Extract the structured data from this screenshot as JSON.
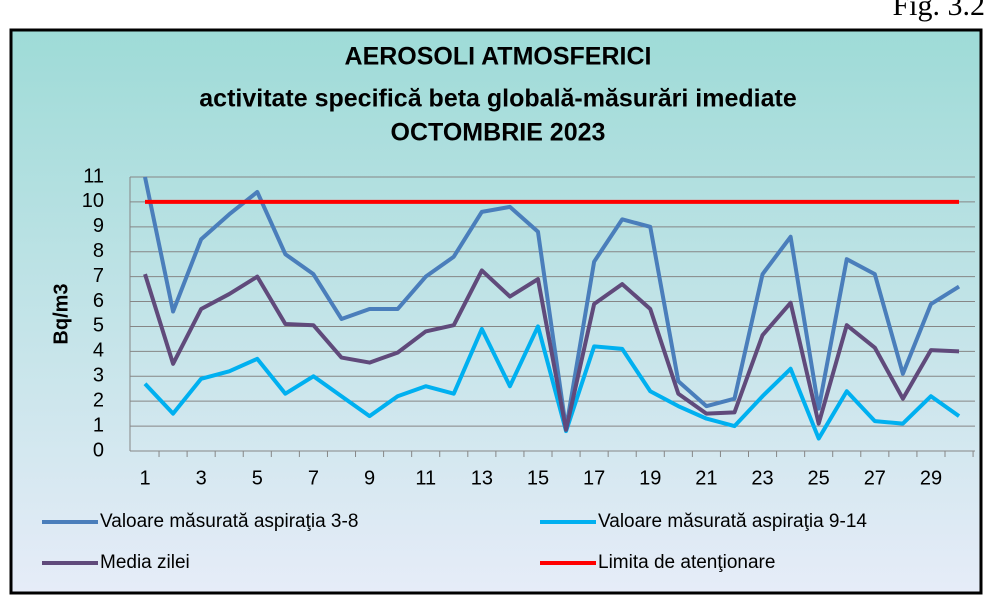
{
  "figure_label": "Fig. 3.2",
  "chart_data": {
    "type": "line",
    "title": [
      "AEROSOLI  ATMOSFERICI",
      "activitate specifică beta globală-măsurări imediate",
      "OCTOMBRIE  2023"
    ],
    "y_label": "Bq/m3",
    "categories": [
      "1",
      null,
      "3",
      null,
      "5",
      null,
      "7",
      null,
      "9",
      null,
      "11",
      null,
      "13",
      null,
      "15",
      null,
      "17",
      null,
      "19",
      null,
      "21",
      null,
      "23",
      null,
      "25",
      null,
      "27",
      null,
      "29",
      null
    ],
    "series": [
      {
        "name": "Valoare măsurată aspiraţia 3-8",
        "color": "#4a7ebb",
        "values": [
          11.0,
          5.6,
          8.5,
          9.5,
          10.4,
          7.9,
          7.1,
          5.3,
          5.7,
          5.7,
          7.0,
          7.8,
          9.6,
          9.8,
          8.8,
          0.9,
          7.6,
          9.3,
          9.0,
          2.8,
          1.8,
          2.1,
          7.1,
          8.6,
          1.7,
          7.7,
          7.1,
          3.1,
          5.9,
          6.6
        ]
      },
      {
        "name": "Valoare măsurată aspiraţia 9-14",
        "color": "#00b0f0",
        "values": [
          2.7,
          1.5,
          2.9,
          3.2,
          3.7,
          2.3,
          3.0,
          2.2,
          1.4,
          2.2,
          2.6,
          2.3,
          4.9,
          2.6,
          5.0,
          0.8,
          4.2,
          4.1,
          2.4,
          1.8,
          1.3,
          1.0,
          2.2,
          3.3,
          0.5,
          2.4,
          1.2,
          1.1,
          2.2,
          1.4
        ]
      },
      {
        "name": "Media zilei",
        "color": "#604a7b",
        "values": [
          7.1,
          3.5,
          5.7,
          6.3,
          7.0,
          5.1,
          5.05,
          3.75,
          3.55,
          3.95,
          4.8,
          5.05,
          7.25,
          6.2,
          6.9,
          0.85,
          5.9,
          6.7,
          5.7,
          2.3,
          1.5,
          1.55,
          4.65,
          5.95,
          1.1,
          5.05,
          4.15,
          2.1,
          4.05,
          4.0
        ]
      },
      {
        "name": "Limita de atenţionare",
        "color": "#ff0000",
        "values": [
          10,
          10,
          10,
          10,
          10,
          10,
          10,
          10,
          10,
          10,
          10,
          10,
          10,
          10,
          10,
          10,
          10,
          10,
          10,
          10,
          10,
          10,
          10,
          10,
          10,
          10,
          10,
          10,
          10,
          10
        ]
      }
    ],
    "ylim": [
      0,
      11
    ],
    "yticks": [
      0,
      1,
      2,
      3,
      4,
      5,
      6,
      7,
      8,
      9,
      10,
      11
    ],
    "grid": true,
    "legend": "bottom"
  }
}
